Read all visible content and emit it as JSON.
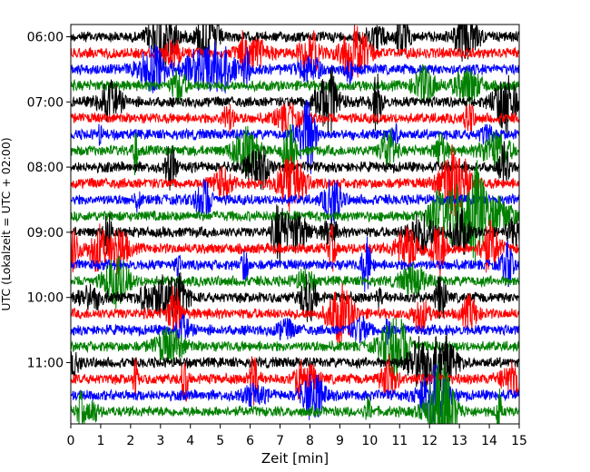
{
  "chart_data": {
    "type": "line",
    "chart_kind": "helicorder (stacked seismogram traces)",
    "xlabel": "Zeit  [min]",
    "ylabel": "UTC (Lokalzeit = UTC + 02:00)",
    "xlim": [
      0,
      15
    ],
    "x_ticks": [
      "0",
      "1",
      "2",
      "3",
      "4",
      "5",
      "6",
      "7",
      "8",
      "9",
      "10",
      "11",
      "12",
      "13",
      "14",
      "15"
    ],
    "y_ticks": [
      "06:00",
      "07:00",
      "08:00",
      "09:00",
      "10:00",
      "11:00"
    ],
    "row_interval_min": 15,
    "first_row_start_utc": "06:00",
    "row_count": 24,
    "trace_colors_cycle": [
      "#000000",
      "#ff0000",
      "#0000ff",
      "#008000"
    ],
    "grid": false,
    "legend": "none"
  }
}
